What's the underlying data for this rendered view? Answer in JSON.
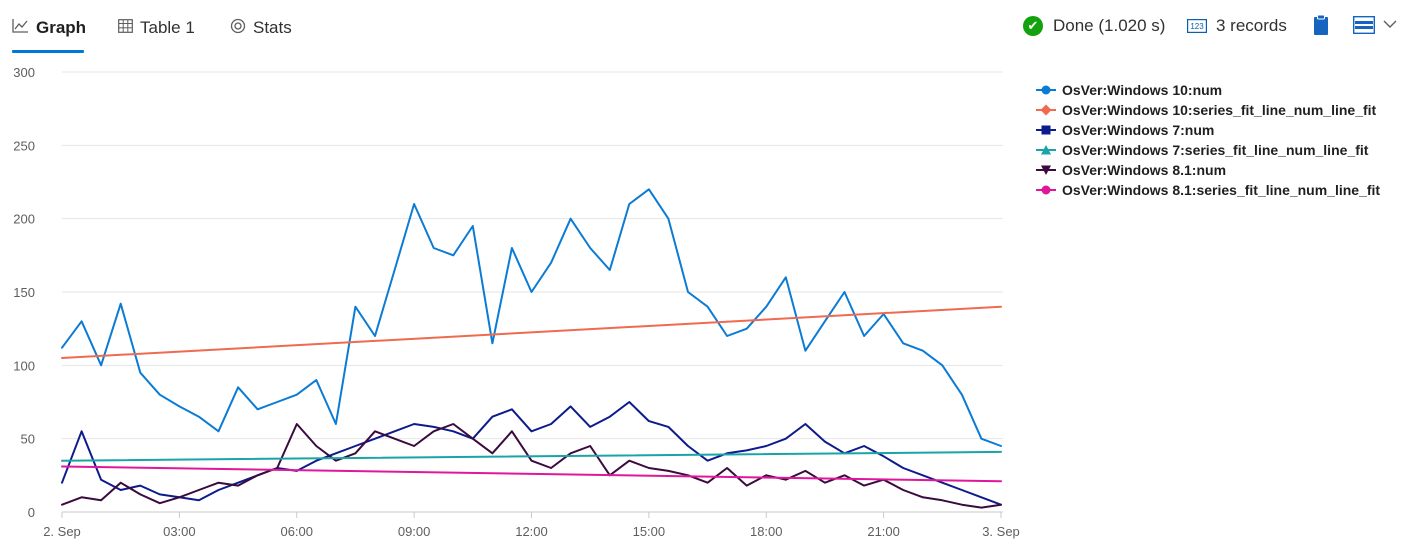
{
  "tabs": [
    {
      "label": "Graph",
      "icon": "line-chart-icon",
      "active": true
    },
    {
      "label": "Table 1",
      "icon": "table-icon",
      "active": false
    },
    {
      "label": "Stats",
      "icon": "stats-icon",
      "active": false
    }
  ],
  "status": {
    "done_text": "Done (1.020 s)",
    "records_text": "3 records",
    "icons": [
      "done-check-icon",
      "records-icon",
      "clipboard-icon",
      "layout-icon",
      "chevron-down-icon"
    ]
  },
  "colors": {
    "accent": "#0078d4",
    "win10": "#0b7bd4",
    "win10_fit": "#ef6a4f",
    "win7": "#0d1b8c",
    "win7_fit": "#1aa3a8",
    "win81": "#3b0a3e",
    "win81_fit": "#e0179a"
  },
  "chart_data": {
    "type": "line",
    "y_ticks": [
      "300",
      "250",
      "200",
      "150",
      "100",
      "50",
      "0"
    ],
    "x_ticks": [
      "2. Sep",
      "03:00",
      "06:00",
      "09:00",
      "12:00",
      "15:00",
      "18:00",
      "21:00",
      "3. Sep"
    ],
    "ylim": [
      0,
      300
    ],
    "xlim": [
      0,
      24
    ],
    "grid": true,
    "legend_position": "right",
    "series": [
      {
        "name": "OsVer:Windows 10:num",
        "marker": "circle",
        "color": "#0b7bd4",
        "x": [
          0,
          0.5,
          1,
          1.5,
          2,
          2.5,
          3,
          3.5,
          4,
          4.5,
          5,
          5.5,
          6,
          6.5,
          7,
          7.5,
          8,
          8.5,
          9,
          9.5,
          10,
          10.5,
          11,
          11.5,
          12,
          12.5,
          13,
          13.5,
          14,
          14.5,
          15,
          15.5,
          16,
          16.5,
          17,
          17.5,
          18,
          18.5,
          19,
          19.5,
          20,
          20.5,
          21,
          21.5,
          22,
          22.5,
          23,
          23.5,
          24
        ],
        "y": [
          112,
          130,
          100,
          142,
          95,
          80,
          72,
          65,
          55,
          85,
          70,
          75,
          80,
          90,
          60,
          140,
          120,
          165,
          210,
          180,
          175,
          195,
          115,
          180,
          150,
          170,
          200,
          180,
          165,
          210,
          220,
          200,
          150,
          140,
          120,
          125,
          140,
          160,
          110,
          130,
          150,
          120,
          135,
          115,
          110,
          100,
          80,
          50,
          45
        ]
      },
      {
        "name": "OsVer:Windows 10:series_fit_line_num_line_fit",
        "marker": "diamond",
        "color": "#ef6a4f",
        "x": [
          0,
          24
        ],
        "y": [
          105,
          140
        ]
      },
      {
        "name": "OsVer:Windows 7:num",
        "marker": "square",
        "color": "#0d1b8c",
        "x": [
          0,
          0.5,
          1,
          1.5,
          2,
          2.5,
          3,
          3.5,
          4,
          4.5,
          5,
          5.5,
          6,
          6.5,
          7,
          7.5,
          8,
          8.5,
          9,
          9.5,
          10,
          10.5,
          11,
          11.5,
          12,
          12.5,
          13,
          13.5,
          14,
          14.5,
          15,
          15.5,
          16,
          16.5,
          17,
          17.5,
          18,
          18.5,
          19,
          19.5,
          20,
          20.5,
          21,
          21.5,
          22,
          22.5,
          23,
          23.5,
          24
        ],
        "y": [
          20,
          55,
          22,
          15,
          18,
          12,
          10,
          8,
          15,
          20,
          25,
          30,
          28,
          35,
          40,
          45,
          50,
          55,
          60,
          58,
          55,
          50,
          65,
          70,
          55,
          60,
          72,
          58,
          65,
          75,
          62,
          58,
          45,
          35,
          40,
          42,
          45,
          50,
          60,
          48,
          40,
          45,
          38,
          30,
          25,
          20,
          15,
          10,
          5
        ]
      },
      {
        "name": "OsVer:Windows 7:series_fit_line_num_line_fit",
        "marker": "triangle",
        "color": "#1aa3a8",
        "x": [
          0,
          24
        ],
        "y": [
          35,
          41
        ]
      },
      {
        "name": "OsVer:Windows 8.1:num",
        "marker": "triangle-down",
        "color": "#3b0a3e",
        "x": [
          0,
          0.5,
          1,
          1.5,
          2,
          2.5,
          3,
          3.5,
          4,
          4.5,
          5,
          5.5,
          6,
          6.5,
          7,
          7.5,
          8,
          8.5,
          9,
          9.5,
          10,
          10.5,
          11,
          11.5,
          12,
          12.5,
          13,
          13.5,
          14,
          14.5,
          15,
          15.5,
          16,
          16.5,
          17,
          17.5,
          18,
          18.5,
          19,
          19.5,
          20,
          20.5,
          21,
          21.5,
          22,
          22.5,
          23,
          23.5,
          24
        ],
        "y": [
          5,
          10,
          8,
          20,
          12,
          6,
          10,
          15,
          20,
          18,
          25,
          30,
          60,
          45,
          35,
          40,
          55,
          50,
          45,
          55,
          60,
          50,
          40,
          55,
          35,
          30,
          40,
          45,
          25,
          35,
          30,
          28,
          25,
          20,
          30,
          18,
          25,
          22,
          28,
          20,
          25,
          18,
          22,
          15,
          10,
          8,
          5,
          3,
          5
        ]
      },
      {
        "name": "OsVer:Windows 8.1:series_fit_line_num_line_fit",
        "marker": "circle",
        "color": "#e0179a",
        "x": [
          0,
          24
        ],
        "y": [
          31,
          21
        ]
      }
    ]
  }
}
